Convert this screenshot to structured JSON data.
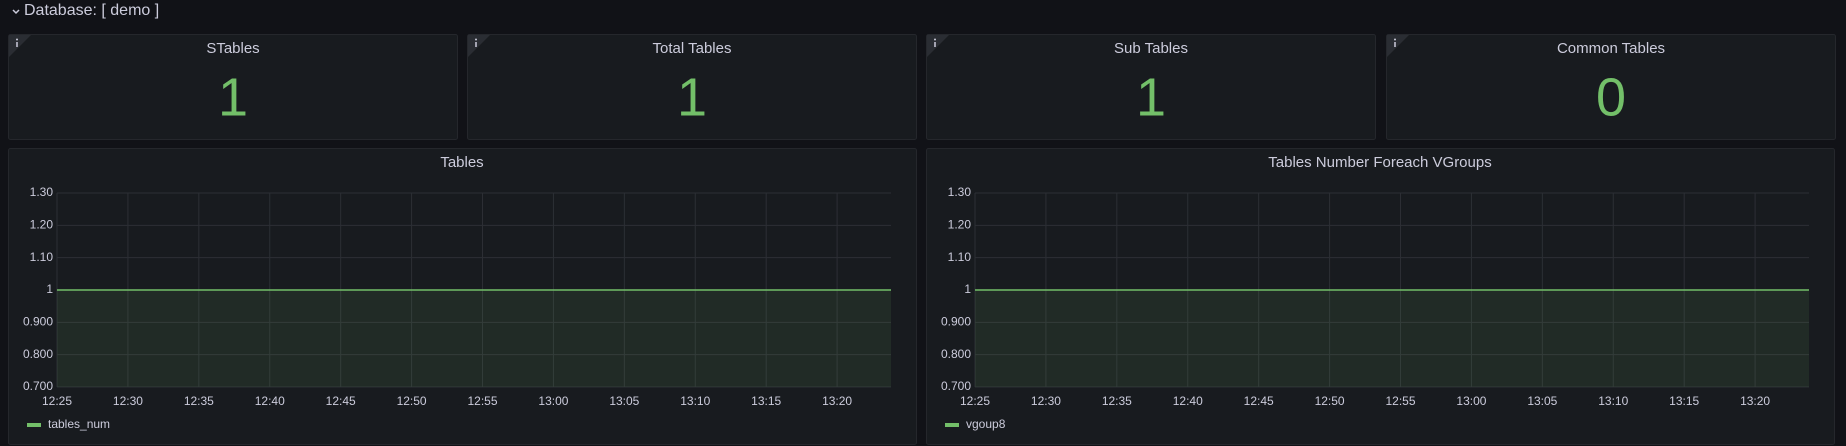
{
  "header": {
    "title": "Database: [ demo ]"
  },
  "stats": [
    {
      "title": "STables",
      "value": 1,
      "color": "#73bf69"
    },
    {
      "title": "Total Tables",
      "value": 1,
      "color": "#73bf69"
    },
    {
      "title": "Sub Tables",
      "value": 1,
      "color": "#73bf69"
    },
    {
      "title": "Common Tables",
      "value": 0,
      "color": "#73bf69"
    }
  ],
  "chart_data": [
    {
      "type": "line",
      "title": "Tables",
      "x": [
        745,
        803.8
      ],
      "series": [
        {
          "name": "tables_num",
          "color": "#73bf69",
          "values": [
            1,
            1
          ]
        }
      ],
      "xlim": [
        745,
        803.8
      ],
      "xticks": [
        {
          "value": 745,
          "label": "12:25"
        },
        {
          "value": 750,
          "label": "12:30"
        },
        {
          "value": 755,
          "label": "12:35"
        },
        {
          "value": 760,
          "label": "12:40"
        },
        {
          "value": 765,
          "label": "12:45"
        },
        {
          "value": 770,
          "label": "12:50"
        },
        {
          "value": 775,
          "label": "12:55"
        },
        {
          "value": 780,
          "label": "13:00"
        },
        {
          "value": 785,
          "label": "13:05"
        },
        {
          "value": 790,
          "label": "13:10"
        },
        {
          "value": 795,
          "label": "13:15"
        },
        {
          "value": 800,
          "label": "13:20"
        }
      ],
      "ylim": [
        0.7,
        1.3
      ],
      "yticks": [
        {
          "value": 0.7,
          "label": "0.700"
        },
        {
          "value": 0.8,
          "label": "0.800"
        },
        {
          "value": 0.9,
          "label": "0.900"
        },
        1,
        {
          "value": 1.1,
          "label": "1.10"
        },
        {
          "value": 1.2,
          "label": "1.20"
        },
        {
          "value": 1.3,
          "label": "1.30"
        }
      ],
      "grid": true,
      "fill": true
    },
    {
      "type": "line",
      "title": "Tables Number Foreach VGroups",
      "x": [
        745,
        803.8
      ],
      "series": [
        {
          "name": "vgoup8",
          "color": "#73bf69",
          "values": [
            1,
            1
          ]
        }
      ],
      "xlim": [
        745,
        803.8
      ],
      "xticks": [
        {
          "value": 745,
          "label": "12:25"
        },
        {
          "value": 750,
          "label": "12:30"
        },
        {
          "value": 755,
          "label": "12:35"
        },
        {
          "value": 760,
          "label": "12:40"
        },
        {
          "value": 765,
          "label": "12:45"
        },
        {
          "value": 770,
          "label": "12:50"
        },
        {
          "value": 775,
          "label": "12:55"
        },
        {
          "value": 780,
          "label": "13:00"
        },
        {
          "value": 785,
          "label": "13:05"
        },
        {
          "value": 790,
          "label": "13:10"
        },
        {
          "value": 795,
          "label": "13:15"
        },
        {
          "value": 800,
          "label": "13:20"
        }
      ],
      "ylim": [
        0.7,
        1.3
      ],
      "yticks": [
        {
          "value": 0.7,
          "label": "0.700"
        },
        {
          "value": 0.8,
          "label": "0.800"
        },
        {
          "value": 0.9,
          "label": "0.900"
        },
        1,
        {
          "value": 1.1,
          "label": "1.10"
        },
        {
          "value": 1.2,
          "label": "1.20"
        },
        {
          "value": 1.3,
          "label": "1.30"
        }
      ],
      "grid": true,
      "fill": true
    }
  ]
}
